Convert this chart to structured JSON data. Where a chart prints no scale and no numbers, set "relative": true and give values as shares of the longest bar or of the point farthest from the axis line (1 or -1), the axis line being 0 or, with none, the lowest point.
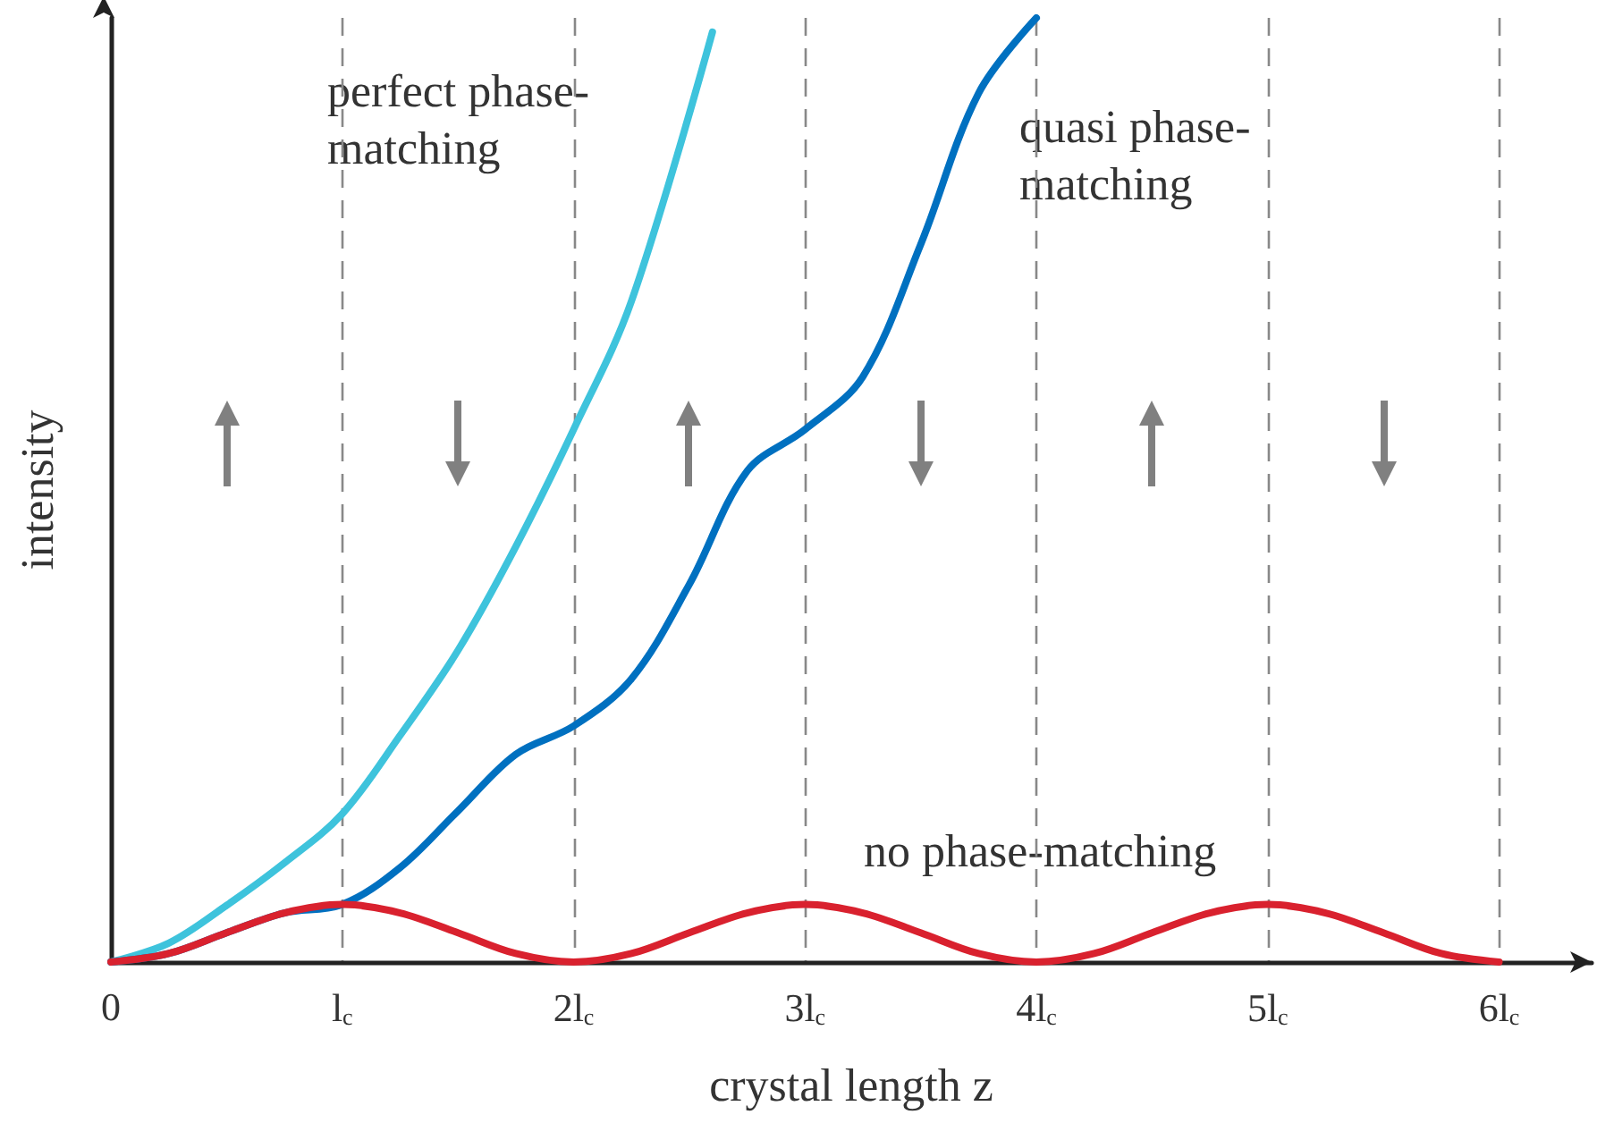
{
  "chart_data": {
    "type": "line",
    "relative": true,
    "xlabel": "crystal length z",
    "ylabel": "intensity",
    "xlim": [
      0,
      6.4
    ],
    "xticks": [
      0,
      {
        "value": 1,
        "label": "l$_{c}$"
      },
      {
        "value": 2,
        "label": "2l$_{c}$"
      },
      {
        "value": 3,
        "label": "3l$_{c}$"
      },
      {
        "value": 4,
        "label": "4l$_{c}$"
      },
      {
        "value": 5,
        "label": "5l$_{c}$"
      },
      {
        "value": 6,
        "label": "6l$_{c}$"
      }
    ],
    "grid": "x",
    "marker": "none",
    "line_style": "solid",
    "legend": false,
    "series": [
      {
        "name": "perfect phase-matching",
        "color": "#3ec3dc",
        "x": [
          0,
          0.25,
          0.5,
          0.75,
          1,
          1.25,
          1.5,
          1.75,
          2,
          2.25,
          2.6
        ],
        "values": [
          0,
          0.02,
          0.06,
          0.105,
          0.157,
          0.24,
          0.33,
          0.44,
          0.564,
          0.7,
          0.985
        ]
      },
      {
        "name": "quasi phase-matching",
        "color": "#0070c0",
        "x": [
          0,
          0.25,
          0.5,
          0.75,
          1,
          1.25,
          1.5,
          1.75,
          2,
          2.25,
          2.5,
          2.75,
          3,
          3.25,
          3.5,
          3.75,
          4
        ],
        "values": [
          0,
          0.009,
          0.031,
          0.052,
          0.061,
          0.1,
          0.16,
          0.22,
          0.25,
          0.3,
          0.4,
          0.52,
          0.564,
          0.62,
          0.76,
          0.92,
          1
        ]
      },
      {
        "name": "no phase-matching",
        "color": "#d9212e",
        "x": [
          0,
          0.25,
          0.5,
          0.75,
          1,
          1.25,
          1.5,
          1.75,
          2,
          2.25,
          2.5,
          2.75,
          3,
          3.25,
          3.5,
          3.75,
          4,
          4.25,
          4.5,
          4.75,
          5,
          5.25,
          5.5,
          5.75,
          6
        ],
        "values": [
          0,
          0.009,
          0.031,
          0.052,
          0.061,
          0.052,
          0.031,
          0.009,
          0,
          0.009,
          0.031,
          0.052,
          0.061,
          0.052,
          0.031,
          0.009,
          0,
          0.009,
          0.031,
          0.052,
          0.061,
          0.052,
          0.031,
          0.009,
          0
        ]
      }
    ]
  }
}
